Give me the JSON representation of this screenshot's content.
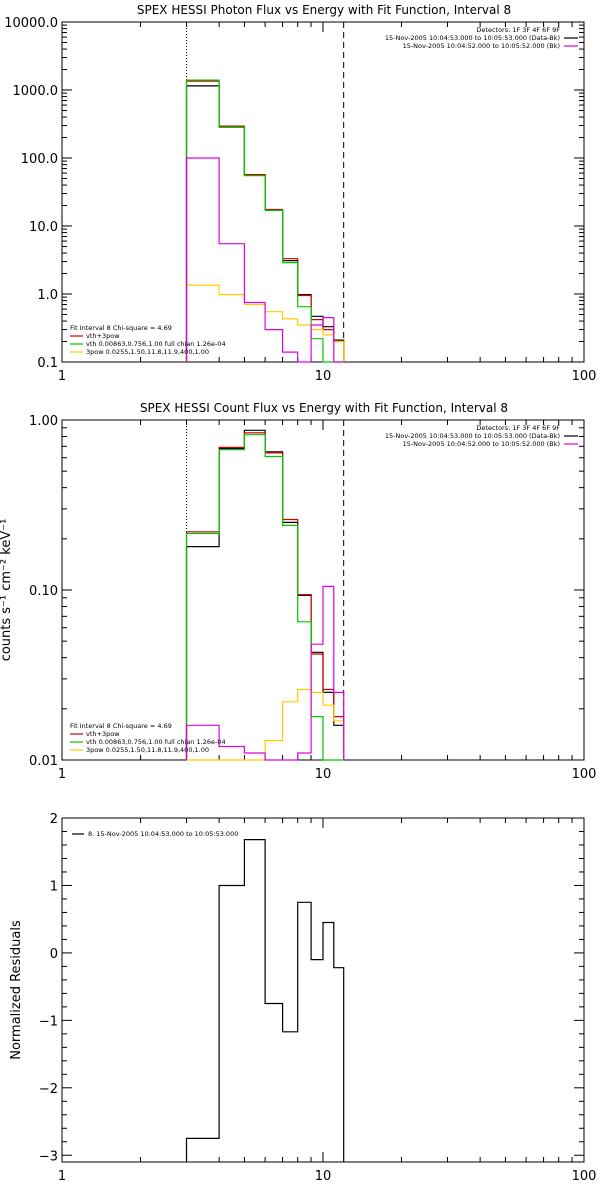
{
  "chart_data": [
    {
      "type": "line",
      "title": "SPEX HESSI Photon Flux vs Energy with Fit Function, Interval 8",
      "xlabel": "",
      "ylabel": "",
      "xscale": "log",
      "yscale": "log",
      "xlim": [
        1,
        100
      ],
      "ylim": [
        0.1,
        10000
      ],
      "xticks": [
        {
          "v": 1,
          "label": "1"
        },
        {
          "v": 10,
          "label": "10"
        },
        {
          "v": 100,
          "label": "100"
        }
      ],
      "yticks": [
        {
          "v": 0.1,
          "label": "0.1"
        },
        {
          "v": 1,
          "label": "1.0"
        },
        {
          "v": 10,
          "label": "10.0"
        },
        {
          "v": 100,
          "label": "100.0"
        },
        {
          "v": 1000,
          "label": "1000.0"
        },
        {
          "v": 10000,
          "label": "10000.0"
        }
      ],
      "vlines": [
        {
          "x": 3.0,
          "style": "dotted"
        },
        {
          "x": 12.0,
          "style": "dashed"
        }
      ],
      "bin_edges": [
        3.0,
        4.0,
        5.0,
        6.0,
        7.0,
        8.0,
        9.0,
        10.0,
        11.0,
        12.0
      ],
      "series": [
        {
          "name": "",
          "color": "#000000",
          "values": [
            1150,
            285,
            56,
            17,
            3.1,
            0.98,
            0.47,
            0.33,
            0.21
          ]
        },
        {
          "name": "",
          "color": "#d40000",
          "values": [
            1350,
            295,
            57,
            17.5,
            3.3,
            0.95,
            0.42,
            0.3,
            0.2
          ]
        },
        {
          "name": "",
          "color": "#00c800",
          "values": [
            1400,
            285,
            55,
            17,
            2.9,
            0.65,
            0.22,
            0.1,
            0.1
          ]
        },
        {
          "name": "",
          "color": "#ffcc00",
          "values": [
            1.35,
            0.98,
            0.7,
            0.55,
            0.43,
            0.35,
            0.3,
            0.25,
            0.2
          ]
        },
        {
          "name": "",
          "color": "#e000e0",
          "values": [
            100,
            5.5,
            0.75,
            0.3,
            0.14,
            0.1,
            0.35,
            0.45,
            0.1
          ]
        }
      ],
      "right_legend": [
        {
          "text": "Detectors: 1F 3F 4F 6F 9F",
          "color": ""
        },
        {
          "text": "15-Nov-2005 10:04:53.000 to 10:05:53.000 (Data-Bk)",
          "color": "#000000"
        },
        {
          "text": "15-Nov-2005 10:04:52.000 to 10:05:52.000 (Bk)",
          "color": "#e000e0"
        }
      ],
      "left_legend": [
        {
          "text": "Fit Interval 8   Chi-square = 4.69",
          "color": ""
        },
        {
          "text": "vth+3pow",
          "color": "#d40000"
        },
        {
          "text": "vth 0.00863,0.756,1.00   full chian 1.26e-04",
          "color": "#00c800"
        },
        {
          "text": "3pow 0.0255,1.50,11.8,11.9,400,1.00",
          "color": "#ffcc00"
        }
      ]
    },
    {
      "type": "line",
      "title": "SPEX HESSI Count Flux vs Energy with Fit Function, Interval 8",
      "xlabel": "",
      "ylabel": "counts s⁻¹ cm⁻² keV⁻¹",
      "xscale": "log",
      "yscale": "log",
      "xlim": [
        1,
        100
      ],
      "ylim": [
        0.01,
        1.0
      ],
      "xticks": [
        {
          "v": 1,
          "label": "1"
        },
        {
          "v": 10,
          "label": "10"
        },
        {
          "v": 100,
          "label": "100"
        }
      ],
      "yticks": [
        {
          "v": 0.01,
          "label": "0.01"
        },
        {
          "v": 0.1,
          "label": "0.10"
        },
        {
          "v": 1,
          "label": "1.00"
        }
      ],
      "vlines": [
        {
          "x": 3.0,
          "style": "dotted"
        },
        {
          "x": 12.0,
          "style": "dashed"
        }
      ],
      "bin_edges": [
        3.0,
        4.0,
        5.0,
        6.0,
        7.0,
        8.0,
        9.0,
        10.0,
        11.0,
        12.0
      ],
      "series": [
        {
          "name": "",
          "color": "#000000",
          "values": [
            0.18,
            0.68,
            0.87,
            0.65,
            0.25,
            0.093,
            0.043,
            0.025,
            0.016
          ]
        },
        {
          "name": "",
          "color": "#d40000",
          "values": [
            0.22,
            0.69,
            0.84,
            0.64,
            0.26,
            0.094,
            0.042,
            0.026,
            0.018
          ]
        },
        {
          "name": "",
          "color": "#00c800",
          "values": [
            0.215,
            0.67,
            0.82,
            0.61,
            0.24,
            0.065,
            0.018,
            0.01,
            0.01
          ]
        },
        {
          "name": "",
          "color": "#ffcc00",
          "values": [
            0.01,
            0.01,
            0.01,
            0.013,
            0.022,
            0.026,
            0.025,
            0.021,
            0.017
          ]
        },
        {
          "name": "",
          "color": "#e000e0",
          "values": [
            0.016,
            0.012,
            0.011,
            0.01,
            0.01,
            0.011,
            0.048,
            0.105,
            0.025
          ]
        }
      ],
      "right_legend": [
        {
          "text": "Detectors: 1F 3F 4F 6F 9F",
          "color": ""
        },
        {
          "text": "15-Nov-2005 10:04:53.000 to 10:05:53.000 (Data-Bk)",
          "color": "#000000"
        },
        {
          "text": "15-Nov-2005 10:04:52.000 to 10:05:52.000 (Bk)",
          "color": "#e000e0"
        }
      ],
      "left_legend": [
        {
          "text": "Fit Interval 8   Chi-square = 4.69",
          "color": ""
        },
        {
          "text": "vth+3pow",
          "color": "#d40000"
        },
        {
          "text": "vth 0.00863,0.756,1.00   full chian 1.26e-04",
          "color": "#00c800"
        },
        {
          "text": "3pow 0.0255,1.50,11.8,11.9,400,1.00",
          "color": "#ffcc00"
        }
      ]
    },
    {
      "type": "line",
      "title": "",
      "xlabel": "",
      "ylabel": "Normalized Residuals",
      "xscale": "log",
      "yscale": "linear",
      "xlim": [
        1,
        100
      ],
      "ylim": [
        -3.1,
        2.0
      ],
      "xticks": [
        {
          "v": 1,
          "label": "1"
        },
        {
          "v": 10,
          "label": "10"
        },
        {
          "v": 100,
          "label": "100"
        }
      ],
      "yticks": [
        {
          "v": -3,
          "label": "−3"
        },
        {
          "v": -2,
          "label": "−2"
        },
        {
          "v": -1,
          "label": "−1"
        },
        {
          "v": 0,
          "label": "0"
        },
        {
          "v": 1,
          "label": "1"
        },
        {
          "v": 2,
          "label": "2"
        }
      ],
      "vlines": [],
      "bin_edges": [
        3.0,
        4.0,
        5.0,
        6.0,
        7.0,
        8.0,
        9.0,
        10.0,
        11.0,
        12.0
      ],
      "series": [
        {
          "name": "8. 15-Nov-2005 10:04:53.000 to 10:05:53.000",
          "color": "#000000",
          "values": [
            -2.75,
            1.0,
            1.68,
            -0.75,
            -1.17,
            0.75,
            -0.1,
            0.45,
            -0.22
          ]
        }
      ],
      "right_legend": [],
      "left_legend": []
    }
  ]
}
